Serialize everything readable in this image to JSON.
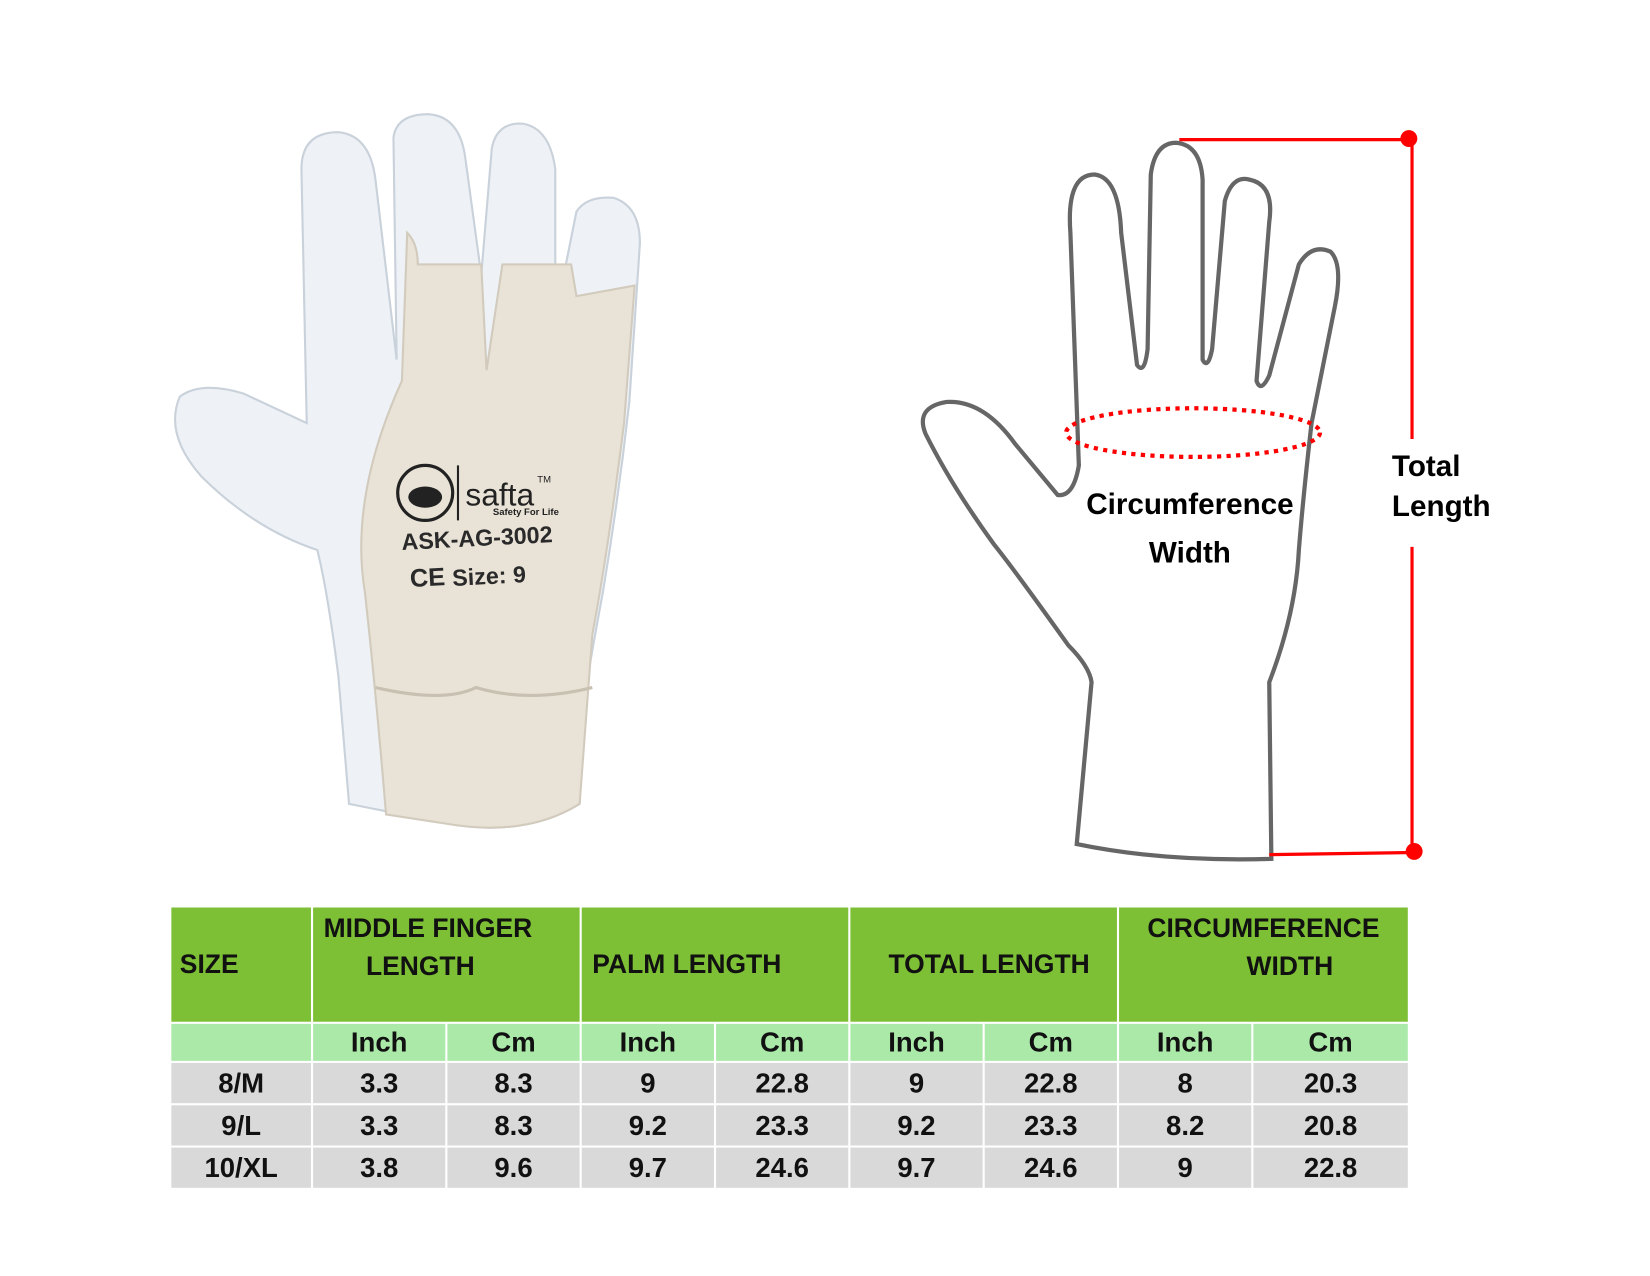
{
  "glove_print": {
    "brand": "safta",
    "trademark": "TM",
    "tagline": "Safety For Life",
    "model": "ASK-AG-3002",
    "ce_mark": "CE",
    "size_text": "Size: 9"
  },
  "diagram": {
    "circumference_label_1": "Circumference",
    "circumference_label_2": "Width",
    "total_label_1": "Total",
    "total_label_2": "Length",
    "accent_color": "#ff0000",
    "outline_color": "#666666"
  },
  "table": {
    "header_color": "#7dc035",
    "subheader_color": "#abe9a9",
    "row_color": "#d9d9d9",
    "headers": [
      "SIZE",
      "MIDDLE FINGER",
      "LENGTH",
      "PALM LENGTH",
      "TOTAL LENGTH",
      "CIRCUMFERENCE",
      "WIDTH"
    ],
    "units": [
      "",
      "Inch",
      "Cm",
      "Inch",
      "Cm",
      "Inch",
      "Cm",
      "Inch",
      "Cm"
    ],
    "rows": [
      [
        "8/M",
        "3.3",
        "8.3",
        "9",
        "22.8",
        "9",
        "22.8",
        "8",
        "20.3"
      ],
      [
        "9/L",
        "3.3",
        "8.3",
        "9.2",
        "23.3",
        "9.2",
        "23.3",
        "8.2",
        "20.8"
      ],
      [
        "10/XL",
        "3.8",
        "9.6",
        "9.7",
        "24.6",
        "9.7",
        "24.6",
        "9",
        "22.8"
      ]
    ]
  }
}
